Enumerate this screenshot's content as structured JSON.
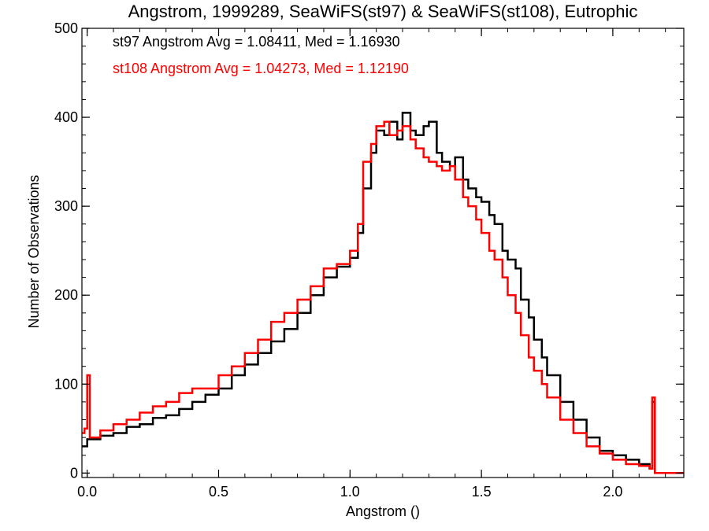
{
  "chart_data": {
    "type": "line",
    "title": "Angstrom, 1999289, SeaWiFS(st97) & SeaWiFS(st108), Eutrophic",
    "xlabel": "Angstrom ()",
    "ylabel": "Number of Observations",
    "xlim": [
      -0.02,
      2.27
    ],
    "ylim": [
      -5,
      500
    ],
    "xticks": [
      "0.0",
      "0.5",
      "1.0",
      "1.5",
      "2.0"
    ],
    "yticks": [
      "0",
      "100",
      "200",
      "300",
      "400",
      "500"
    ],
    "grid": false,
    "annotations": [
      {
        "text": "st97 Angstrom Avg = 1.08411, Med = 1.16930",
        "color": "#000000"
      },
      {
        "text": "st108 Angstrom Avg = 1.04273, Med = 1.12190",
        "color": "#ff0000"
      }
    ],
    "series": [
      {
        "color": "#000000",
        "x": [
          -0.02,
          0.0,
          0.05,
          0.1,
          0.15,
          0.2,
          0.25,
          0.3,
          0.35,
          0.4,
          0.45,
          0.5,
          0.55,
          0.6,
          0.65,
          0.7,
          0.75,
          0.8,
          0.85,
          0.9,
          0.95,
          1.0,
          1.03,
          1.05,
          1.08,
          1.1,
          1.13,
          1.15,
          1.18,
          1.2,
          1.23,
          1.25,
          1.28,
          1.3,
          1.33,
          1.35,
          1.38,
          1.4,
          1.43,
          1.45,
          1.48,
          1.5,
          1.53,
          1.55,
          1.58,
          1.6,
          1.63,
          1.65,
          1.68,
          1.7,
          1.73,
          1.75,
          1.8,
          1.85,
          1.9,
          1.95,
          2.0,
          2.05,
          2.1,
          2.14,
          2.15,
          2.16,
          2.27
        ],
        "y": [
          30,
          38,
          42,
          45,
          52,
          55,
          62,
          65,
          72,
          80,
          88,
          95,
          110,
          122,
          135,
          148,
          162,
          180,
          200,
          220,
          232,
          242,
          270,
          320,
          360,
          385,
          380,
          395,
          375,
          405,
          385,
          380,
          390,
          395,
          360,
          350,
          345,
          355,
          330,
          320,
          310,
          305,
          290,
          280,
          250,
          240,
          230,
          195,
          175,
          150,
          130,
          110,
          80,
          60,
          40,
          25,
          20,
          15,
          10,
          5,
          80,
          0,
          0
        ]
      },
      {
        "color": "#ff0000",
        "x": [
          -0.02,
          -0.01,
          0.0,
          0.01,
          0.05,
          0.1,
          0.15,
          0.2,
          0.25,
          0.3,
          0.35,
          0.4,
          0.45,
          0.5,
          0.55,
          0.6,
          0.65,
          0.7,
          0.75,
          0.8,
          0.85,
          0.9,
          0.95,
          1.0,
          1.03,
          1.05,
          1.08,
          1.1,
          1.13,
          1.15,
          1.18,
          1.2,
          1.23,
          1.25,
          1.28,
          1.3,
          1.33,
          1.35,
          1.38,
          1.4,
          1.43,
          1.45,
          1.48,
          1.5,
          1.53,
          1.55,
          1.58,
          1.6,
          1.63,
          1.65,
          1.68,
          1.7,
          1.73,
          1.75,
          1.8,
          1.85,
          1.9,
          1.95,
          2.0,
          2.05,
          2.1,
          2.14,
          2.15,
          2.16,
          2.27
        ],
        "y": [
          45,
          50,
          110,
          40,
          48,
          55,
          60,
          68,
          75,
          80,
          90,
          95,
          95,
          110,
          120,
          135,
          150,
          170,
          180,
          195,
          210,
          230,
          235,
          250,
          280,
          350,
          370,
          390,
          395,
          380,
          385,
          390,
          375,
          365,
          355,
          350,
          345,
          340,
          345,
          330,
          310,
          300,
          285,
          270,
          250,
          240,
          220,
          200,
          180,
          155,
          130,
          115,
          100,
          85,
          60,
          45,
          30,
          22,
          15,
          10,
          8,
          5,
          85,
          0,
          0
        ]
      }
    ]
  }
}
